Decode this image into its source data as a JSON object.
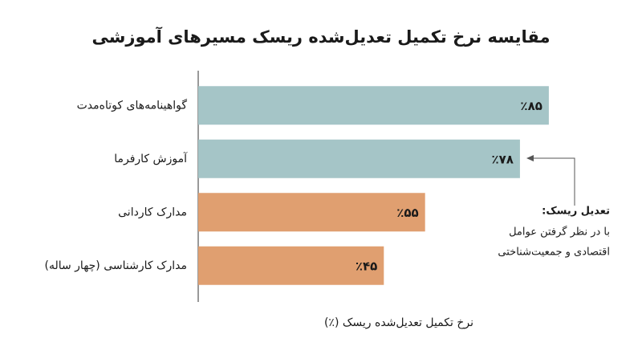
{
  "chart_data": {
    "type": "barh",
    "title": "مقایسه نرخ تکمیل تعدیل‌شده ریسک مسیرهای آموزشی",
    "x_label": "نرخ تکمیل تعدیل‌شده ریسک (٪)",
    "categories": [
      "گواهینامه‌های کوتاه‌مدت",
      "آموزش کارفرما",
      "مدارک کاردانی",
      "مدارک کارشناسی (چهار ساله)"
    ],
    "values": [
      85,
      78,
      55,
      45
    ],
    "value_labels": [
      "٪۸۵",
      "٪۷۸",
      "٪۵۵",
      "٪۴۵"
    ],
    "colors": [
      "#a5c5c7",
      "#a5c5c7",
      "#e09f70",
      "#e09f70"
    ],
    "xlim": [
      0,
      100
    ],
    "annotation": {
      "title": "تعدیل ریسک:",
      "lines": [
        "با در نظر گرفتن عوامل",
        "اقتصادی و جمعیت‌شناختی"
      ]
    }
  }
}
